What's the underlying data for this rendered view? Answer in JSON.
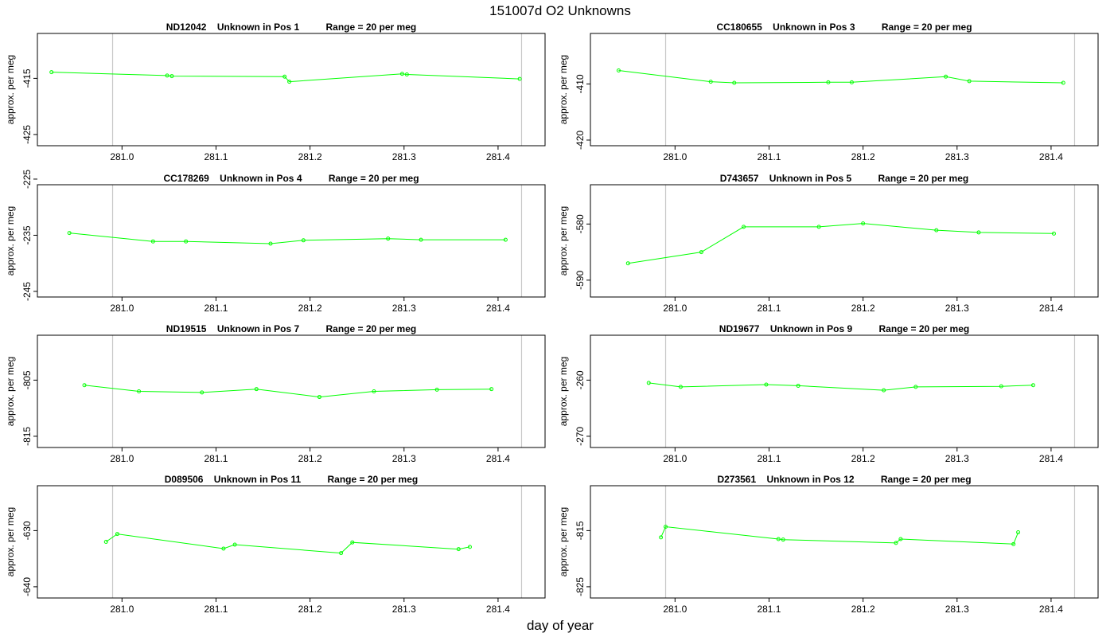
{
  "title": "151007d  O2 Unknowns",
  "xlabel": "day of year",
  "colors": {
    "series": "#00ff00",
    "vline": "#c8c8c8",
    "axis": "#000000"
  },
  "chart_data": [
    {
      "type": "line",
      "title": "ND12042    Unknown in Pos 1          Range = 20 per meg",
      "ylabel": "approx. per meg",
      "xlim": [
        280.91,
        281.45
      ],
      "ylim": [
        -427,
        -407
      ],
      "xticks": [
        281.0,
        281.1,
        281.2,
        281.3,
        281.4
      ],
      "yticks": [
        -415,
        -425
      ],
      "vlines": [
        280.99,
        281.425
      ],
      "x": [
        280.925,
        281.048,
        281.053,
        281.173,
        281.178,
        281.298,
        281.303,
        281.423
      ],
      "y": [
        -413.9,
        -414.5,
        -414.6,
        -414.7,
        -415.6,
        -414.2,
        -414.3,
        -415.1
      ]
    },
    {
      "type": "line",
      "title": "CC180655    Unknown in Pos 3          Range = 20 per meg",
      "ylabel": "approx. per meg",
      "xlim": [
        280.91,
        281.45
      ],
      "ylim": [
        -421,
        -401
      ],
      "xticks": [
        281.0,
        281.1,
        281.2,
        281.3,
        281.4
      ],
      "yticks": [
        -410,
        -420
      ],
      "vlines": [
        280.99,
        281.425
      ],
      "x": [
        280.94,
        281.038,
        281.063,
        281.163,
        281.188,
        281.288,
        281.313,
        281.413
      ],
      "y": [
        -407.6,
        -409.6,
        -409.8,
        -409.7,
        -409.7,
        -408.7,
        -409.5,
        -409.8
      ]
    },
    {
      "type": "line",
      "title": "CC178269    Unknown in Pos 4          Range = 20 per meg",
      "ylabel": "approx. per meg",
      "xlim": [
        280.91,
        281.45
      ],
      "ylim": [
        -246,
        -226
      ],
      "xticks": [
        281.0,
        281.1,
        281.2,
        281.3,
        281.4
      ],
      "yticks": [
        -225,
        -235,
        -245
      ],
      "vlines": [
        280.99,
        281.425
      ],
      "x": [
        280.944,
        281.033,
        281.068,
        281.158,
        281.193,
        281.283,
        281.318,
        281.408
      ],
      "y": [
        -234.6,
        -236.1,
        -236.1,
        -236.5,
        -235.9,
        -235.6,
        -235.8,
        -235.8
      ]
    },
    {
      "type": "line",
      "title": "D743657    Unknown in Pos 5          Range = 20 per meg",
      "ylabel": "approx. per meg",
      "xlim": [
        280.91,
        281.45
      ],
      "ylim": [
        -593,
        -573
      ],
      "xticks": [
        281.0,
        281.1,
        281.2,
        281.3,
        281.4
      ],
      "yticks": [
        -580,
        -590
      ],
      "vlines": [
        280.99,
        281.425
      ],
      "x": [
        280.95,
        281.028,
        281.073,
        281.153,
        281.2,
        281.278,
        281.323,
        281.403
      ],
      "y": [
        -587.0,
        -585.0,
        -580.5,
        -580.5,
        -579.9,
        -581.1,
        -581.5,
        -581.7
      ]
    },
    {
      "type": "line",
      "title": "ND19515    Unknown in Pos 7          Range = 20 per meg",
      "ylabel": "approx. per meg",
      "xlim": [
        280.91,
        281.45
      ],
      "ylim": [
        -817,
        -797
      ],
      "xticks": [
        281.0,
        281.1,
        281.2,
        281.3,
        281.4
      ],
      "yticks": [
        -805,
        -815
      ],
      "vlines": [
        280.99,
        281.425
      ],
      "x": [
        280.96,
        281.018,
        281.085,
        281.143,
        281.21,
        281.268,
        281.335,
        281.393
      ],
      "y": [
        -805.9,
        -807.0,
        -807.2,
        -806.6,
        -808.0,
        -807.0,
        -806.7,
        -806.6
      ]
    },
    {
      "type": "line",
      "title": "ND19677    Unknown in Pos 9          Range = 20 per meg",
      "ylabel": "approx. per meg",
      "xlim": [
        280.91,
        281.45
      ],
      "ylim": [
        -272,
        -252
      ],
      "xticks": [
        281.0,
        281.1,
        281.2,
        281.3,
        281.4
      ],
      "yticks": [
        -260,
        -270
      ],
      "vlines": [
        280.99,
        281.425
      ],
      "x": [
        280.972,
        281.006,
        281.097,
        281.131,
        281.222,
        281.256,
        281.347,
        281.381
      ],
      "y": [
        -260.5,
        -261.2,
        -260.8,
        -261.0,
        -261.8,
        -261.2,
        -261.1,
        -260.9
      ]
    },
    {
      "type": "line",
      "title": "D089506    Unknown in Pos 11          Range = 20 per meg",
      "ylabel": "approx. per meg",
      "xlim": [
        280.91,
        281.45
      ],
      "ylim": [
        -642,
        -622
      ],
      "xticks": [
        281.0,
        281.1,
        281.2,
        281.3,
        281.4
      ],
      "yticks": [
        -630,
        -640
      ],
      "vlines": [
        280.99,
        281.425
      ],
      "x": [
        280.983,
        280.995,
        281.108,
        281.12,
        281.233,
        281.245,
        281.358,
        281.37
      ],
      "y": [
        -632.0,
        -630.6,
        -633.2,
        -632.5,
        -634.0,
        -632.1,
        -633.3,
        -632.9
      ]
    },
    {
      "type": "line",
      "title": "D273561    Unknown in Pos 12          Range = 20 per meg",
      "ylabel": "approx. per meg",
      "xlim": [
        280.91,
        281.45
      ],
      "ylim": [
        -827,
        -807
      ],
      "xticks": [
        281.0,
        281.1,
        281.2,
        281.3,
        281.4
      ],
      "yticks": [
        -815,
        -825
      ],
      "vlines": [
        280.99,
        281.425
      ],
      "x": [
        280.985,
        280.99,
        281.11,
        281.115,
        281.235,
        281.24,
        281.36,
        281.365
      ],
      "y": [
        -816.2,
        -814.3,
        -816.5,
        -816.6,
        -817.2,
        -816.5,
        -817.4,
        -815.3
      ]
    }
  ]
}
